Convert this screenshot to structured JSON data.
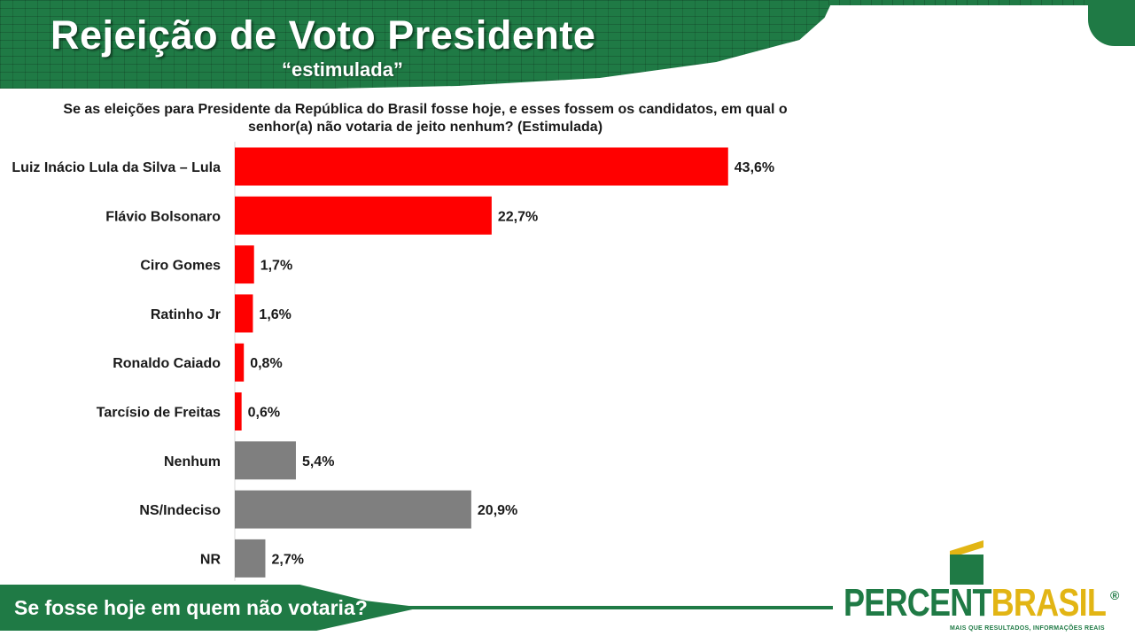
{
  "header": {
    "title": "Rejeição de Voto Presidente",
    "subtitle": "“estimulada”"
  },
  "question": "Se as eleições para Presidente da República do Brasil fosse hoje, e esses fossem os candidatos, em qual o senhor(a) não votaria de jeito nenhum? (Estimulada)",
  "footer": {
    "text": "Se fosse hoje em quem não votaria?"
  },
  "logo": {
    "percent": "PERCENT",
    "brasil": "BRASIL",
    "registered": "®",
    "tagline": "MAIS QUE RESULTADOS, INFORMAÇÕES REAIS"
  },
  "colors": {
    "candidate": "#ff0000",
    "other": "#7f7f7f",
    "brand_green": "#1f7a45",
    "brand_yellow": "#e2b514"
  },
  "chart_data": {
    "type": "bar",
    "orientation": "horizontal",
    "categories": [
      "Luiz Inácio Lula da Silva – Lula",
      "Flávio Bolsonaro",
      "Ciro Gomes",
      "Ratinho Jr",
      "Ronaldo Caiado",
      "Tarcísio de Freitas",
      "Nenhum",
      "NS/Indeciso",
      "NR"
    ],
    "values": [
      43.6,
      22.7,
      1.7,
      1.6,
      0.8,
      0.6,
      5.4,
      20.9,
      2.7
    ],
    "value_labels": [
      "43,6%",
      "22,7%",
      "1,7%",
      "1,6%",
      "0,8%",
      "0,6%",
      "5,4%",
      "20,9%",
      "2,7%"
    ],
    "bar_colors": [
      "#ff0000",
      "#ff0000",
      "#ff0000",
      "#ff0000",
      "#ff0000",
      "#ff0000",
      "#7f7f7f",
      "#7f7f7f",
      "#7f7f7f"
    ],
    "grid": false,
    "legend": "none"
  }
}
